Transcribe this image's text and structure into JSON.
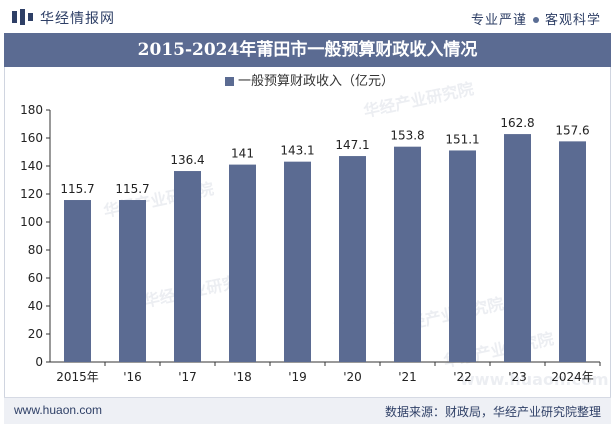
{
  "header": {
    "site_name": "华经情报网",
    "slogan_left": "专业严谨",
    "slogan_right": "客观科学"
  },
  "title": "2015-2024年莆田市一般预算财政收入情况",
  "footer": {
    "url": "www.huaon.com",
    "source": "数据来源：财政局，华经产业研究院整理"
  },
  "watermark": "华经产业研究院",
  "watermark_url": "www.huaon.com",
  "chart_data": {
    "type": "bar",
    "categories": [
      "2015年",
      "'16",
      "'17",
      "'18",
      "'19",
      "'20",
      "'21",
      "'22",
      "'23",
      "2024年"
    ],
    "series": [
      {
        "name": "一般预算财政收入（亿元）",
        "values": [
          115.7,
          115.7,
          136.4,
          141,
          143.1,
          147.1,
          153.8,
          151.1,
          162.8,
          157.6
        ],
        "color": "#5b6b92"
      }
    ],
    "ylim": [
      0,
      180
    ],
    "yticks": [
      0,
      20,
      40,
      60,
      80,
      100,
      120,
      140,
      160,
      180
    ],
    "legend_position": "top-center",
    "grid": false
  }
}
